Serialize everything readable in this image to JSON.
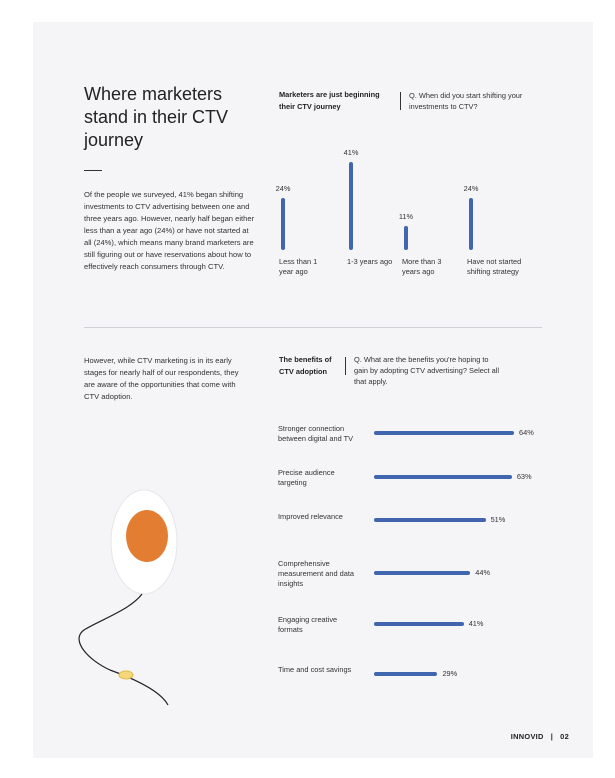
{
  "page": {
    "title": "Where marketers stand in their CTV journey",
    "intro_paragraph": "Of the people we surveyed, 41% began shifting investments to CTV advertising between one and three years ago. However, nearly half began either less than a year ago (24%) or have not started at all (24%), which means many brand marketers are still figuring out or have reservations about how to effectively reach consumers through CTV.",
    "second_paragraph": "However, while CTV marketing is in its early stages for nearly half of our respondents, they are aware of the opportunities that come with CTV adoption."
  },
  "section1": {
    "heading": "Marketers are just beginning their CTV journey",
    "question": "Q. When did you start shifting your investments to CTV?"
  },
  "section2": {
    "heading": "The benefits of CTV adoption",
    "question": "Q. What are the benefits you're hoping to gain by adopting CTV advertising? Select all that apply."
  },
  "colors": {
    "bar": "#3f66ae",
    "accent_orange": "#e27d32"
  },
  "chart_data": [
    {
      "type": "bar",
      "orientation": "vertical",
      "categories": [
        "Less than 1 year ago",
        "1-3 years ago",
        "More than 3 years ago",
        "Have not started shifting strategy"
      ],
      "values": [
        24,
        41,
        11,
        24
      ],
      "value_labels": [
        "24%",
        "41%",
        "11%",
        "24%"
      ],
      "ylim": [
        0,
        41
      ]
    },
    {
      "type": "bar",
      "orientation": "horizontal",
      "categories": [
        "Stronger connection between digital and TV",
        "Precise audience targeting",
        "Improved relevance",
        "Comprehensive measurement and data insights",
        "Engaging creative formats",
        "Time and cost savings"
      ],
      "values": [
        64,
        63,
        51,
        44,
        41,
        29
      ],
      "value_labels": [
        "64%",
        "63%",
        "51%",
        "44%",
        "41%",
        "29%"
      ],
      "xlim": [
        0,
        64
      ]
    }
  ],
  "footer": {
    "brand": "INNOVID",
    "separator": "|",
    "page_number": "02"
  }
}
